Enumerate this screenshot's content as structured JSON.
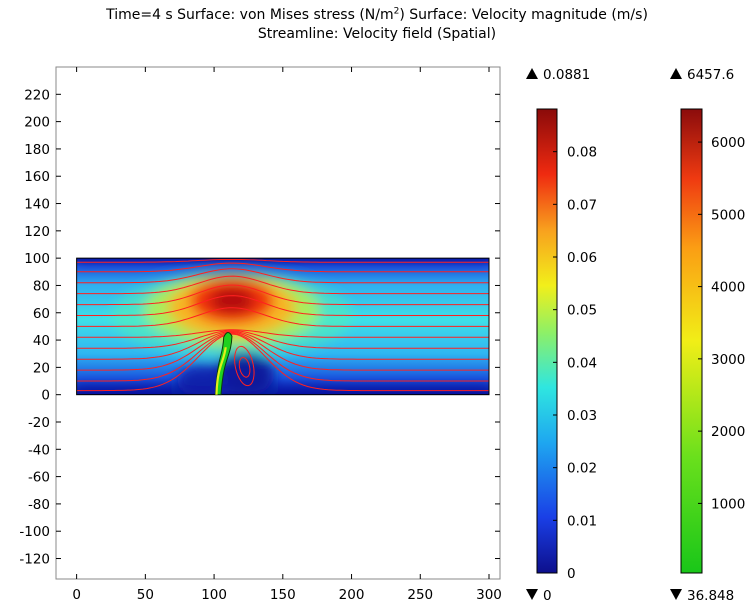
{
  "title": {
    "line1_a": "Time=4 s   Surface: von Mises stress (N/m",
    "line1_sup": "2",
    "line1_b": ")  Surface: Velocity magnitude (m/s)",
    "line2": "Streamline: Velocity field (Spatial)"
  },
  "chart_data": {
    "type": "heatmap",
    "description_source": "surface plot",
    "time": "4 s",
    "x_axis": {
      "range": [
        -15,
        308
      ],
      "ticks": [
        0,
        50,
        100,
        150,
        200,
        250,
        300
      ]
    },
    "y_axis": {
      "range": [
        -135,
        240
      ],
      "ticks": [
        220,
        200,
        180,
        160,
        140,
        120,
        100,
        80,
        60,
        40,
        20,
        0,
        -20,
        -40,
        -60,
        -80,
        -100,
        -120
      ]
    },
    "domain": {
      "x": [
        0,
        300
      ],
      "y": [
        0,
        100
      ]
    },
    "flap": {
      "base_x": [
        101,
        105
      ],
      "top_x": [
        107,
        113
      ],
      "top_y": 45
    },
    "velocity_peak": {
      "x": 113,
      "y": 69
    },
    "streamlines": {
      "inflow_y": [
        3,
        10,
        18,
        26,
        34,
        42,
        50,
        58,
        66,
        74,
        82,
        90,
        97
      ],
      "vortex_center": {
        "x": 122,
        "y": 21
      }
    },
    "colorbars": [
      {
        "quantity": "von Mises stress (N/m^2)",
        "max_label": "0.0881",
        "min_label": "0",
        "range": [
          0,
          0.0881
        ],
        "ticks": [
          "0.08",
          "0.07",
          "0.06",
          "0.05",
          "0.04",
          "0.03",
          "0.02",
          "0.01",
          "0"
        ],
        "tick_values": [
          0.08,
          0.07,
          0.06,
          0.05,
          0.04,
          0.03,
          0.02,
          0.01,
          0
        ],
        "colormap": "rainbow"
      },
      {
        "quantity": "Velocity magnitude (m/s)",
        "max_label": "6457.6",
        "min_label": "36.848",
        "range": [
          36.848,
          6457.6
        ],
        "ticks": [
          "6000",
          "5000",
          "4000",
          "3000",
          "2000",
          "1000"
        ],
        "tick_values": [
          6000,
          5000,
          4000,
          3000,
          2000,
          1000
        ],
        "colormap": "traffic"
      }
    ],
    "colors": {
      "stream": "#ff2020",
      "flap_green": "#1fd11f",
      "flap_yellow": "#e3ef1a"
    }
  }
}
